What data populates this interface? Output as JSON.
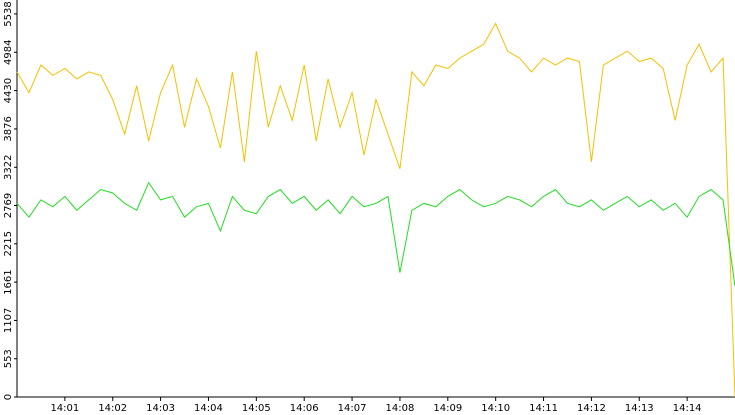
{
  "chart_data": {
    "type": "line",
    "categories": [
      null,
      null,
      null,
      null,
      "14:01",
      null,
      null,
      null,
      "14:02",
      null,
      null,
      null,
      "14:03",
      null,
      null,
      null,
      "14:04",
      null,
      null,
      null,
      "14:05",
      null,
      null,
      null,
      "14:06",
      null,
      null,
      null,
      "14:07",
      null,
      null,
      null,
      "14:08",
      null,
      null,
      null,
      "14:09",
      null,
      null,
      null,
      "14:10",
      null,
      null,
      null,
      "14:11",
      null,
      null,
      null,
      "14:12",
      null,
      null,
      null,
      "14:13",
      null,
      null,
      null,
      "14:14",
      null,
      null,
      null,
      null
    ],
    "series": [
      {
        "color": "#f5c000",
        "values": [
          4700,
          4400,
          4800,
          4650,
          4750,
          4600,
          4700,
          4650,
          4300,
          3800,
          4500,
          3700,
          4400,
          4800,
          3900,
          4600,
          4200,
          3600,
          4700,
          3400,
          5000,
          3900,
          4500,
          4000,
          4800,
          3700,
          4600,
          3900,
          4400,
          3500,
          4300,
          3800,
          3300,
          4700,
          4500,
          4800,
          4750,
          4900,
          5000,
          5100,
          5400,
          5000,
          4900,
          4700,
          4900,
          4800,
          4900,
          4850,
          3400,
          4800,
          4900,
          5000,
          4850,
          4900,
          4750,
          4000,
          4800,
          5100,
          4700,
          4900,
          0
        ]
      },
      {
        "color": "#22dd22",
        "values": [
          2800,
          2600,
          2850,
          2750,
          2900,
          2700,
          2850,
          3000,
          2950,
          2800,
          2700,
          3100,
          2850,
          2900,
          2600,
          2750,
          2800,
          2400,
          2900,
          2700,
          2650,
          2900,
          3000,
          2800,
          2900,
          2700,
          2850,
          2650,
          2900,
          2750,
          2800,
          2900,
          1800,
          2700,
          2800,
          2750,
          2900,
          3000,
          2850,
          2750,
          2800,
          2900,
          2850,
          2750,
          2900,
          3000,
          2800,
          2750,
          2850,
          2700,
          2800,
          2900,
          2750,
          2850,
          2700,
          2800,
          2600,
          2900,
          3000,
          2850,
          1600
        ]
      }
    ],
    "ylim": [
      0,
      5740
    ],
    "yticks": [
      0,
      553,
      1107,
      1661,
      2215,
      2769,
      3322,
      3876,
      4430,
      4984,
      5538
    ]
  }
}
